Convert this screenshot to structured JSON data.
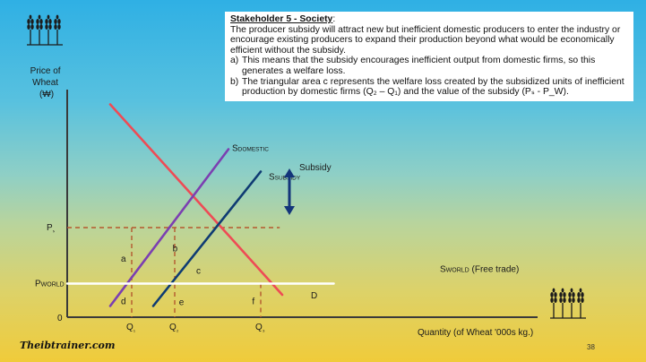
{
  "textbox": {
    "title": "Stakeholder 5 - Society",
    "title_colon": ":",
    "intro": "The producer subsidy will attract new but inefficient domestic producers to enter the industry or encourage existing producers to expand their production beyond what would be economically efficient without the subsidy.",
    "points": [
      {
        "marker": "a)",
        "text": "This means that the subsidy encourages inefficient output from domestic firms, so this generates a welfare loss."
      },
      {
        "marker": "b)",
        "text": "The triangular area c represents the welfare loss created by the subsidized units of inefficient production by domestic firms (Q₂ – Q₁) and the value of the subsidy (Pₛ - P_W)."
      }
    ]
  },
  "chart_data": {
    "type": "line",
    "ylabel": [
      "Price of",
      "Wheat",
      "(₩)"
    ],
    "xlabel": "Quantity (of Wheat '000s kg.)",
    "origin_label": "0",
    "x_ticks": [
      {
        "label": "Q₁",
        "x": 3
      },
      {
        "label": "Q₂",
        "x": 5
      },
      {
        "label": "Q₃",
        "x": 9
      }
    ],
    "y_ticks": [
      {
        "label": "Pₛ",
        "y": 8
      },
      {
        "label": "P_WORLD",
        "y": 3
      }
    ],
    "xlim": [
      0,
      16
    ],
    "ylim": [
      0,
      20
    ],
    "series": [
      {
        "name": "D",
        "color": "#ee4b55",
        "x": [
          2,
          10
        ],
        "y": [
          19,
          2
        ]
      },
      {
        "name": "S_DOMESTIC",
        "name_parts": [
          "S",
          "DOMESTIC"
        ],
        "color": "#7b3fb1",
        "x": [
          2,
          7.5
        ],
        "y": [
          1,
          15
        ]
      },
      {
        "name": "S_SUBSIDY",
        "name_parts": [
          "S",
          "SUBSIDY"
        ],
        "color": "#0f3b73",
        "x": [
          4,
          9
        ],
        "y": [
          1,
          13
        ]
      },
      {
        "name": "S_WORLD (Free trade)",
        "name_parts": [
          "S",
          "WORLD",
          " (Free trade)"
        ],
        "color": "#ffffff",
        "x": [
          0,
          12.4
        ],
        "y": [
          3,
          3
        ]
      }
    ],
    "areas": [
      {
        "label": "a",
        "x": 1,
        "y": 5.3
      },
      {
        "label": "b",
        "x": 3.4,
        "y": 6.2
      },
      {
        "label": "c",
        "x": 4.5,
        "y": 4.2
      },
      {
        "label": "d",
        "x": 1,
        "y": 1.5
      },
      {
        "label": "e",
        "x": 3.7,
        "y": 1.4
      },
      {
        "label": "f",
        "x": 7.1,
        "y": 1.5
      }
    ],
    "annotation": {
      "label": "Subsidy",
      "color": "#13357a",
      "x": 7,
      "y_from": 8,
      "y_to": 12.5
    },
    "grid": false,
    "dashed_color": "#b4582e"
  },
  "footer": {
    "brand": "Theibtrainer.com",
    "page": "38"
  },
  "icons": [
    "wheat-icon",
    "wheat-icon"
  ]
}
